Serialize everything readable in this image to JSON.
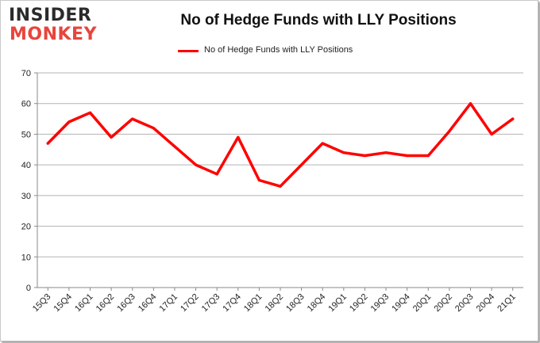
{
  "brand": {
    "line1": "INSIDER",
    "line2": "MONKEY",
    "dark_color": "#2b2b2b",
    "accent_color": "#e8453c"
  },
  "chart_data": {
    "type": "line",
    "title": "No of Hedge Funds with LLY Positions",
    "xlabel": "",
    "ylabel": "",
    "ylim": [
      0,
      70
    ],
    "yticks": [
      0,
      10,
      20,
      30,
      40,
      50,
      60,
      70
    ],
    "grid": true,
    "legend_position": "top-center",
    "categories": [
      "15Q3",
      "15Q4",
      "16Q1",
      "16Q2",
      "16Q3",
      "16Q4",
      "17Q1",
      "17Q2",
      "17Q3",
      "17Q4",
      "18Q1",
      "18Q2",
      "18Q3",
      "18Q4",
      "19Q1",
      "19Q2",
      "19Q3",
      "19Q4",
      "20Q1",
      "20Q2",
      "20Q3",
      "20Q4",
      "21Q1"
    ],
    "series": [
      {
        "name": "No of Hedge Funds with LLY Positions",
        "color": "#ff0000",
        "values": [
          47,
          54,
          57,
          49,
          55,
          52,
          46,
          40,
          37,
          49,
          35,
          33,
          40,
          47,
          44,
          43,
          44,
          43,
          43,
          51,
          60,
          50,
          55
        ]
      }
    ]
  }
}
